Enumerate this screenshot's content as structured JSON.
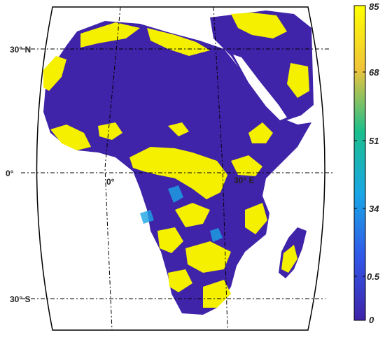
{
  "map": {
    "lat_labels": {
      "north": "30° N",
      "equator": "0°",
      "south": "30° S"
    },
    "lon_labels": {
      "zero": "0°",
      "thirty_e": "30° E"
    }
  },
  "colorbar": {
    "tick_labels": [
      "85",
      "68",
      "51",
      "34",
      "0.5",
      "0"
    ],
    "colors": [
      "#ffff00",
      "#f0c43a",
      "#1bbf8c",
      "#1aa6e6",
      "#3157e8",
      "#3f23a8"
    ]
  },
  "palette": {
    "land_low": "#3f23a8",
    "land_high": "#f5f000",
    "ocean": "#ffffff",
    "graticule": "#000000"
  }
}
